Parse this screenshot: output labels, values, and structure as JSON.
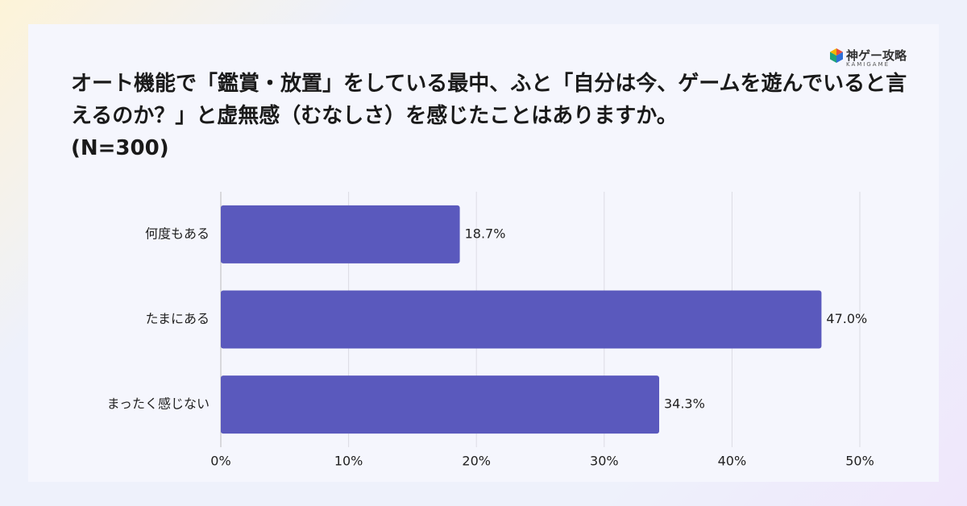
{
  "brand": {
    "name": "神ゲー攻略",
    "sub": "KAMIGAME"
  },
  "chart_data": {
    "type": "bar",
    "orientation": "horizontal",
    "title": "オート機能で「鑑賞・放置」をしている最中、ふと「自分は今、ゲームを遊んでいると言えるのか？」と虚無感（むなしさ）を感じたことはありますか。",
    "subtitle": "(N=300)",
    "categories": [
      "何度もある",
      "たまにある",
      "まったく感じない"
    ],
    "values": [
      18.7,
      47.0,
      34.3
    ],
    "value_labels": [
      "18.7%",
      "47.0%",
      "34.3%"
    ],
    "color": "#5a59bd",
    "xlim": [
      0,
      50
    ],
    "xticks": [
      {
        "value": 0,
        "label": "0%"
      },
      {
        "value": 10,
        "label": "10%"
      },
      {
        "value": 20,
        "label": "20%"
      },
      {
        "value": 30,
        "label": "30%"
      },
      {
        "value": 40,
        "label": "40%"
      },
      {
        "value": 50,
        "label": "50%"
      }
    ],
    "grid": true
  }
}
